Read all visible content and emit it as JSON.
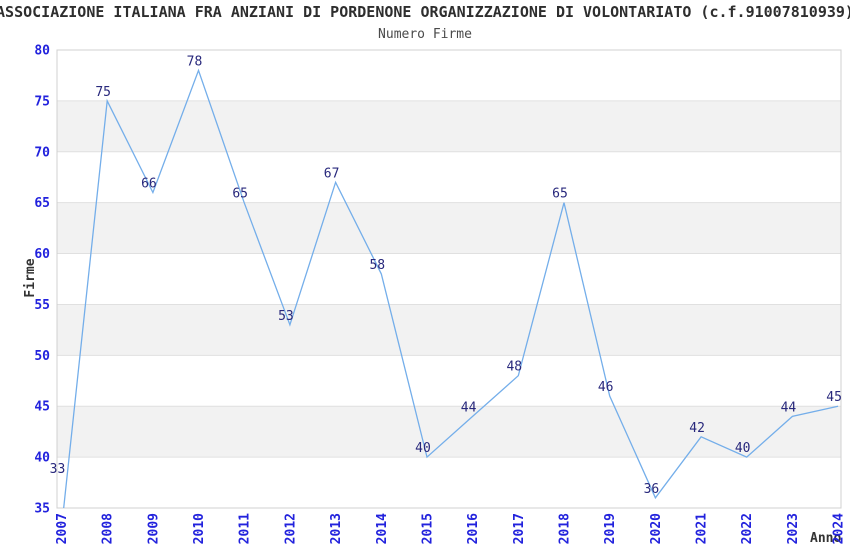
{
  "chart_data": {
    "type": "line",
    "title": "ASSOCIAZIONE ITALIANA FRA ANZIANI DI PORDENONE ORGANIZZAZIONE DI VOLONTARIATO (c.f.91007810939)",
    "subtitle": "Numero Firme",
    "xlabel": "Anno",
    "ylabel": "Firme",
    "categories": [
      "2007",
      "2008",
      "2009",
      "2010",
      "2011",
      "2012",
      "2013",
      "2014",
      "2015",
      "2016",
      "2017",
      "2018",
      "2019",
      "2020",
      "2021",
      "2022",
      "2023",
      "2024"
    ],
    "values": [
      33,
      75,
      66,
      78,
      65,
      53,
      67,
      58,
      40,
      44,
      48,
      65,
      46,
      36,
      42,
      40,
      44,
      45
    ],
    "ylim": [
      35,
      80
    ],
    "yticks": [
      35,
      40,
      45,
      50,
      55,
      60,
      65,
      70,
      75,
      80
    ],
    "band_ranges": [
      [
        40,
        45
      ],
      [
        50,
        55
      ],
      [
        60,
        65
      ],
      [
        70,
        75
      ]
    ],
    "grid": true,
    "legend_position": "none",
    "colors": {
      "line": "#74aeea",
      "tick_label": "#2222dd",
      "data_label": "#28287c",
      "band": "#f2f2f2",
      "gridline": "#e0e0e0",
      "border": "#d0d0d0",
      "title": "#2e2e2e",
      "subtitle": "#4a4a4a",
      "axis_title": "#333333"
    }
  }
}
